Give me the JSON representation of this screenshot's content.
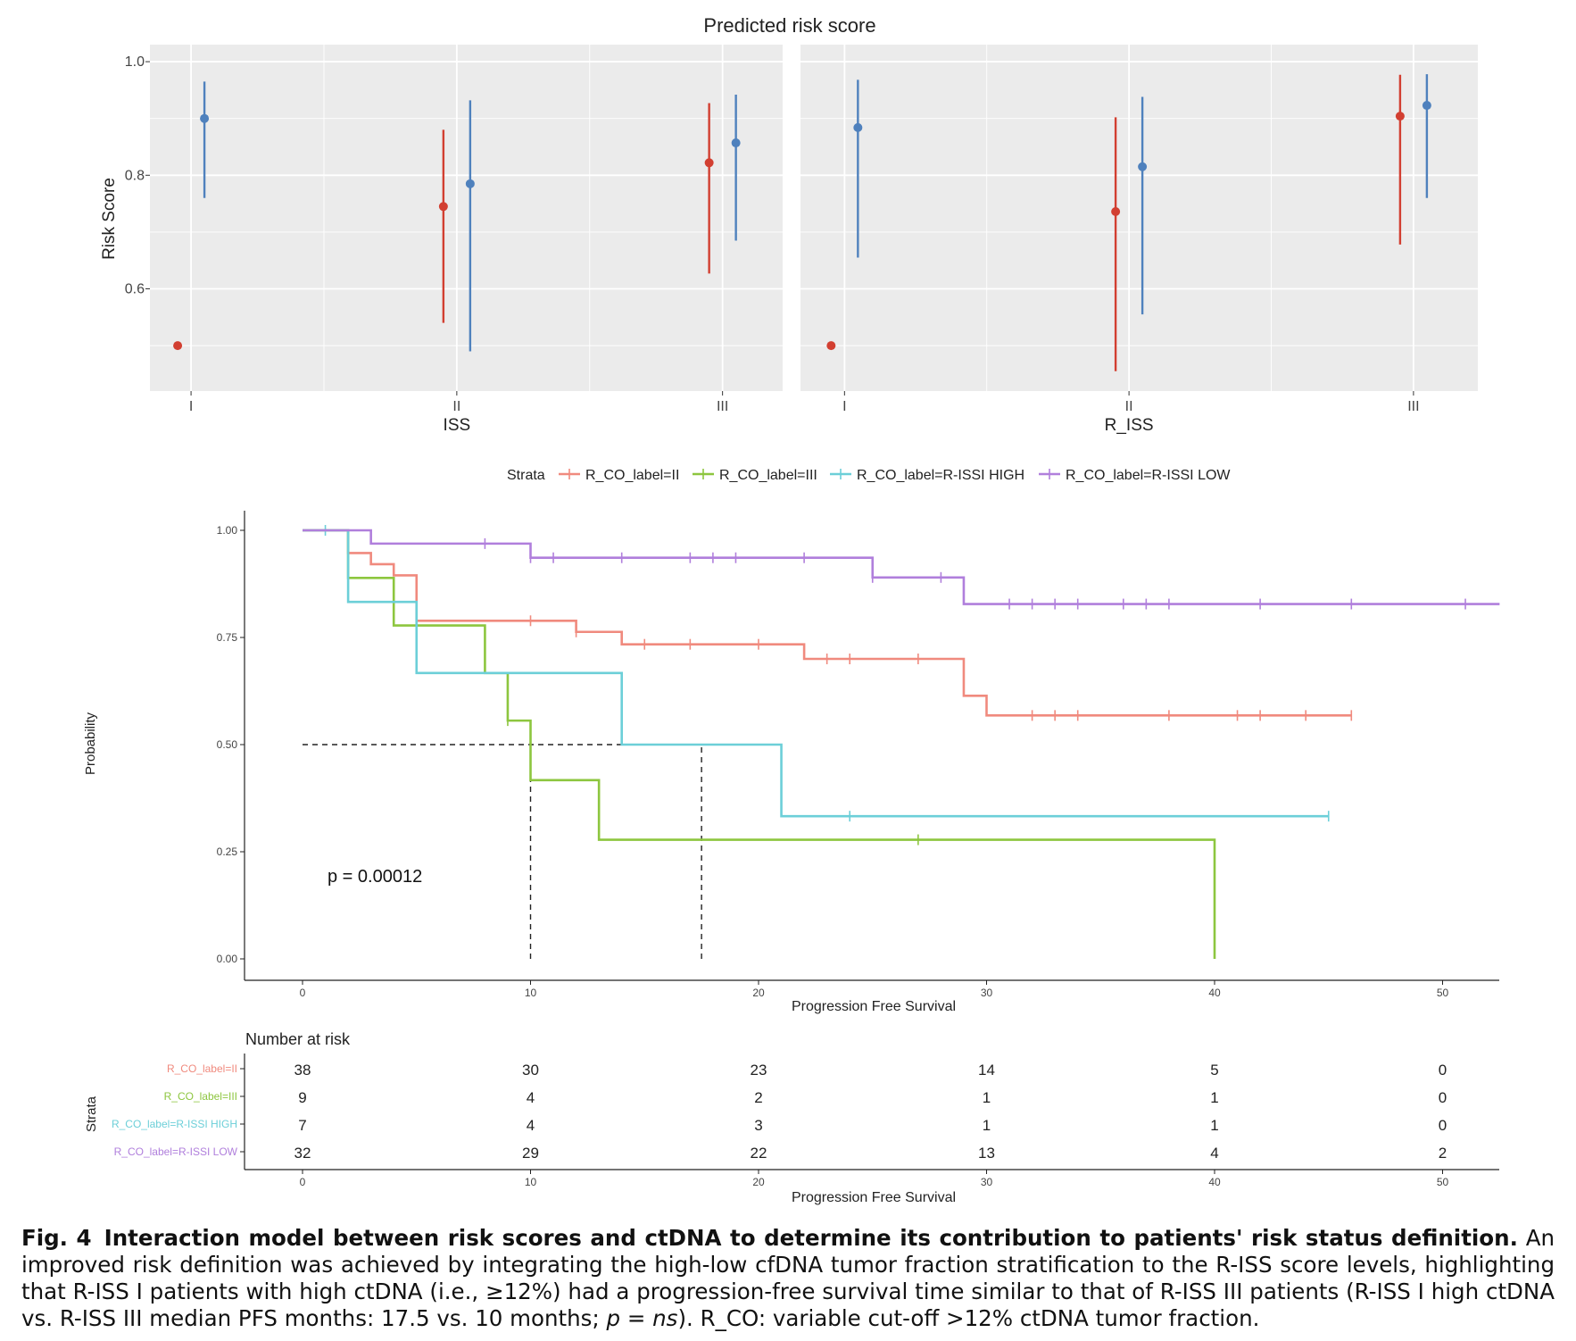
{
  "risk_panel": {
    "title": "Predicted risk score",
    "ylabel": "Risk Score",
    "y_ticks": [
      "1.0",
      "0.8",
      "0.6"
    ],
    "facets": [
      {
        "xlabel": "ISS",
        "categories": [
          "I",
          "II",
          "III"
        ]
      },
      {
        "xlabel": "R_ISS",
        "categories": [
          "I",
          "II",
          "III"
        ]
      }
    ]
  },
  "km": {
    "legend_title": "Strata",
    "strata": [
      {
        "name": "R_CO_label=II",
        "color": "#f08a7e"
      },
      {
        "name": "R_CO_label=III",
        "color": "#8dc63f"
      },
      {
        "name": "R_CO_label=R-ISSI HIGH",
        "color": "#6ccfd8"
      },
      {
        "name": "R_CO_label=R-ISSI LOW",
        "color": "#b07fdc"
      }
    ],
    "ylabel": "Probability",
    "xlabel": "Progression Free Survival",
    "y_ticks": [
      "1.00",
      "0.75",
      "0.50",
      "0.25",
      "0.00"
    ],
    "x_ticks": [
      "0",
      "10",
      "20",
      "30",
      "40",
      "50"
    ],
    "pvalue": "p = 0.00012"
  },
  "risk_table": {
    "title": "Number at risk",
    "ylabel": "Strata",
    "xlabel": "Progression Free Survival",
    "x_ticks": [
      "0",
      "10",
      "20",
      "30",
      "40",
      "50"
    ],
    "rows": [
      {
        "label": "R_CO_label=II",
        "values": [
          "38",
          "30",
          "23",
          "14",
          "5",
          "0"
        ]
      },
      {
        "label": "R_CO_label=III",
        "values": [
          "9",
          "4",
          "2",
          "1",
          "1",
          "0"
        ]
      },
      {
        "label": "R_CO_label=R-ISSI HIGH",
        "values": [
          "7",
          "4",
          "3",
          "1",
          "1",
          "0"
        ]
      },
      {
        "label": "R_CO_label=R-ISSI LOW",
        "values": [
          "32",
          "29",
          "22",
          "13",
          "4",
          "2"
        ]
      }
    ]
  },
  "caption": {
    "label": "Fig. 4",
    "title": "Interaction model between risk scores and ctDNA to determine its contribution to patients' risk status definition.",
    "body": "An improved risk definition was achieved by integrating the high-low cfDNA tumor fraction stratification to the R-ISS score levels, highlighting that R-ISS I patients with high ctDNA (i.e., ≥12%) had a progression-free survival time similar to that of R-ISS III patients (R-ISS I high ctDNA vs. R-ISS III median PFS months: 17.5 vs. 10 months; ",
    "italic_p": "p",
    "equals": " = ",
    "italic_ns": "ns",
    "tail": "). R_CO: variable cut-off >12% ctDNA tumor fraction."
  },
  "chart_data": [
    {
      "type": "scatter",
      "title": "Predicted risk score",
      "subtype": "point estimates with intervals, faceted",
      "ylabel": "Risk Score",
      "ylim": [
        0.42,
        1.03
      ],
      "grid": true,
      "facets": [
        {
          "xlabel": "ISS",
          "categories": [
            "I",
            "II",
            "III"
          ],
          "points": [
            {
              "category": "I",
              "color": "#d23f31",
              "y": 0.5
            },
            {
              "category": "I",
              "color": "#4f81bd",
              "y": 0.9,
              "low": 0.76,
              "high": 0.965
            },
            {
              "category": "II",
              "color": "#d23f31",
              "y": 0.745,
              "low": 0.54,
              "high": 0.88
            },
            {
              "category": "II",
              "color": "#4f81bd",
              "y": 0.785,
              "low": 0.49,
              "high": 0.932
            },
            {
              "category": "III",
              "color": "#d23f31",
              "y": 0.822,
              "low": 0.627,
              "high": 0.927
            },
            {
              "category": "III",
              "color": "#4f81bd",
              "y": 0.857,
              "low": 0.685,
              "high": 0.942
            }
          ]
        },
        {
          "xlabel": "R_ISS",
          "categories": [
            "I",
            "II",
            "III"
          ],
          "points": [
            {
              "category": "I",
              "color": "#d23f31",
              "y": 0.5
            },
            {
              "category": "I",
              "color": "#4f81bd",
              "y": 0.884,
              "low": 0.655,
              "high": 0.968
            },
            {
              "category": "II",
              "color": "#d23f31",
              "y": 0.736,
              "low": 0.455,
              "high": 0.902
            },
            {
              "category": "II",
              "color": "#4f81bd",
              "y": 0.815,
              "low": 0.555,
              "high": 0.938
            },
            {
              "category": "III",
              "color": "#d23f31",
              "y": 0.904,
              "low": 0.678,
              "high": 0.977
            },
            {
              "category": "III",
              "color": "#4f81bd",
              "y": 0.923,
              "low": 0.76,
              "high": 0.978
            }
          ]
        }
      ]
    },
    {
      "type": "line",
      "subtype": "kaplan-meier step",
      "xlabel": "Progression Free Survival",
      "ylabel": "Probability",
      "xlim": [
        0,
        52.5
      ],
      "ylim": [
        0,
        1
      ],
      "legend": "top",
      "annotation": "p = 0.00012",
      "median_lines": [
        {
          "y": 0.5,
          "x_from": 0,
          "x_to": 17.5
        },
        {
          "x": 10,
          "y_from": 0,
          "y_to": 0.5
        },
        {
          "x": 17.5,
          "y_from": 0,
          "y_to": 0.5
        }
      ],
      "series": [
        {
          "name": "R_CO_label=II",
          "color": "#f08a7e",
          "steps": [
            [
              0,
              1.0
            ],
            [
              2,
              0.947
            ],
            [
              3,
              0.921
            ],
            [
              4,
              0.895
            ],
            [
              5,
              0.789
            ],
            [
              12,
              0.763
            ],
            [
              14,
              0.734
            ],
            [
              22,
              0.7
            ],
            [
              29,
              0.614
            ],
            [
              30,
              0.568
            ],
            [
              46,
              0.568
            ]
          ],
          "censors": [
            10,
            12,
            15,
            17,
            20,
            23,
            24,
            27,
            32,
            33,
            34,
            38,
            41,
            42,
            44,
            46
          ]
        },
        {
          "name": "R_CO_label=III",
          "color": "#8dc63f",
          "steps": [
            [
              0,
              1.0
            ],
            [
              2,
              0.889
            ],
            [
              4,
              0.778
            ],
            [
              8,
              0.667
            ],
            [
              9,
              0.556
            ],
            [
              10,
              0.417
            ],
            [
              13,
              0.278
            ],
            [
              40,
              0.0
            ]
          ],
          "censors": [
            9,
            27
          ]
        },
        {
          "name": "R_CO_label=R-ISSI HIGH",
          "color": "#6ccfd8",
          "steps": [
            [
              0,
              1.0
            ],
            [
              2,
              0.833
            ],
            [
              5,
              0.667
            ],
            [
              14,
              0.5
            ],
            [
              21,
              0.333
            ],
            [
              45,
              0.333
            ]
          ],
          "censors": [
            1,
            24,
            45
          ]
        },
        {
          "name": "R_CO_label=R-ISSI LOW",
          "color": "#b07fdc",
          "steps": [
            [
              0,
              1.0
            ],
            [
              3,
              0.969
            ],
            [
              10,
              0.936
            ],
            [
              25,
              0.89
            ],
            [
              29,
              0.828
            ],
            [
              52.5,
              0.828
            ]
          ],
          "censors": [
            8,
            10,
            11,
            14,
            17,
            18,
            19,
            22,
            25,
            28,
            31,
            32,
            33,
            34,
            36,
            37,
            38,
            42,
            46,
            51
          ]
        }
      ]
    },
    {
      "type": "table",
      "title": "Number at risk",
      "columns": [
        "0",
        "10",
        "20",
        "30",
        "40",
        "50"
      ],
      "rows": [
        {
          "label": "R_CO_label=II",
          "values": [
            38,
            30,
            23,
            14,
            5,
            0
          ]
        },
        {
          "label": "R_CO_label=III",
          "values": [
            9,
            4,
            2,
            1,
            1,
            0
          ]
        },
        {
          "label": "R_CO_label=R-ISSI HIGH",
          "values": [
            7,
            4,
            3,
            1,
            1,
            0
          ]
        },
        {
          "label": "R_CO_label=R-ISSI LOW",
          "values": [
            32,
            29,
            22,
            13,
            4,
            2
          ]
        }
      ]
    }
  ]
}
